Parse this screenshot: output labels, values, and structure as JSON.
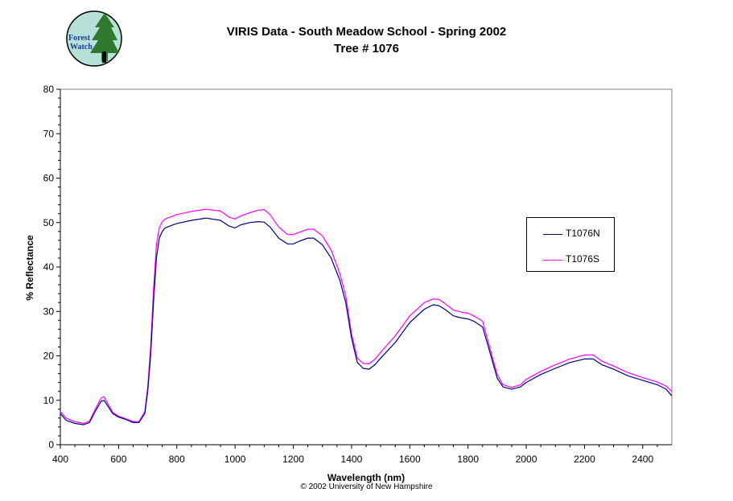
{
  "logo": {
    "text_line1": "Forest",
    "text_line2": "Watch"
  },
  "chart_data": {
    "type": "line",
    "title": "VIRIS Data - South Meadow School - Spring 2002",
    "subtitle": "Tree # 1076",
    "xlabel": "Wavelength (nm)",
    "ylabel": "% Reflectance",
    "xlim": [
      400,
      2500
    ],
    "ylim": [
      0,
      80
    ],
    "xticks": [
      400,
      600,
      800,
      1000,
      1200,
      1400,
      1600,
      1800,
      2000,
      2200,
      2400
    ],
    "yticks": [
      0,
      10,
      20,
      30,
      40,
      50,
      60,
      70,
      80
    ],
    "grid": false,
    "legend_position": "right",
    "series": [
      {
        "name": "T1076N",
        "color": "#000080",
        "x": [
          400,
          420,
          450,
          480,
          500,
          520,
          540,
          550,
          560,
          580,
          600,
          620,
          650,
          670,
          690,
          700,
          710,
          720,
          730,
          740,
          750,
          760,
          780,
          800,
          850,
          900,
          950,
          980,
          1000,
          1020,
          1050,
          1080,
          1100,
          1120,
          1150,
          1180,
          1200,
          1220,
          1250,
          1270,
          1300,
          1330,
          1360,
          1380,
          1400,
          1420,
          1440,
          1460,
          1480,
          1500,
          1550,
          1600,
          1650,
          1680,
          1700,
          1720,
          1750,
          1780,
          1800,
          1820,
          1850,
          1870,
          1900,
          1920,
          1950,
          1980,
          2000,
          2050,
          2100,
          2150,
          2200,
          2230,
          2260,
          2300,
          2350,
          2400,
          2450,
          2480,
          2500
        ],
        "y": [
          7,
          5.5,
          4.8,
          4.5,
          5,
          7.5,
          9.8,
          10,
          9,
          7,
          6.2,
          5.8,
          5,
          5,
          7,
          12,
          20,
          32,
          42,
          46.5,
          48,
          48.8,
          49.3,
          49.8,
          50.5,
          51,
          50.5,
          49.2,
          48.8,
          49.5,
          50,
          50.2,
          50.1,
          49,
          46.5,
          45.2,
          45.2,
          45.8,
          46.5,
          46.5,
          45,
          42,
          37,
          32,
          24,
          18.5,
          17.2,
          17,
          18,
          19.5,
          23,
          27.5,
          30.5,
          31.5,
          31.3,
          30.5,
          29,
          28.5,
          28.3,
          27.8,
          26.5,
          22,
          15,
          13,
          12.5,
          13,
          14,
          15.8,
          17.2,
          18.5,
          19.3,
          19.3,
          18,
          17,
          15.5,
          14.5,
          13.5,
          12.5,
          11
        ]
      },
      {
        "name": "T1076S",
        "color": "#ff00ff",
        "x": [
          400,
          420,
          450,
          480,
          500,
          520,
          540,
          550,
          560,
          580,
          600,
          620,
          650,
          670,
          690,
          700,
          710,
          720,
          730,
          740,
          750,
          760,
          780,
          800,
          850,
          900,
          950,
          980,
          1000,
          1020,
          1050,
          1080,
          1100,
          1120,
          1150,
          1180,
          1200,
          1220,
          1250,
          1270,
          1300,
          1330,
          1360,
          1380,
          1400,
          1420,
          1440,
          1460,
          1480,
          1500,
          1550,
          1600,
          1650,
          1680,
          1700,
          1720,
          1750,
          1780,
          1800,
          1820,
          1850,
          1870,
          1900,
          1920,
          1950,
          1980,
          2000,
          2050,
          2100,
          2150,
          2200,
          2230,
          2260,
          2300,
          2350,
          2400,
          2450,
          2480,
          2500
        ],
        "y": [
          7.5,
          6,
          5.2,
          4.8,
          5.3,
          8,
          10.5,
          10.8,
          9.6,
          7.3,
          6.4,
          6,
          5.2,
          5.2,
          7.5,
          13,
          22,
          35,
          45,
          48.8,
          50.2,
          50.8,
          51.3,
          51.8,
          52.5,
          53,
          52.6,
          51.2,
          50.8,
          51.5,
          52.2,
          52.8,
          52.9,
          51.8,
          49,
          47.3,
          47.3,
          47.8,
          48.5,
          48.5,
          47,
          43.8,
          38.5,
          33.5,
          25,
          19.5,
          18.3,
          18.2,
          19.2,
          20.8,
          24.5,
          29,
          32,
          32.8,
          32.7,
          31.8,
          30.3,
          29.8,
          29.6,
          29,
          27.8,
          23,
          15.8,
          13.5,
          12.9,
          13.5,
          14.7,
          16.5,
          18,
          19.3,
          20.2,
          20.2,
          18.8,
          17.7,
          16.2,
          15.1,
          14.1,
          13.2,
          12
        ]
      }
    ]
  },
  "copyright": "© 2002 University of New Hampshire"
}
